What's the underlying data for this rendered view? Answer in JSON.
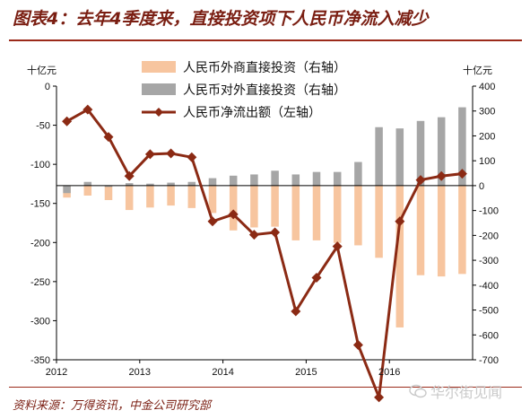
{
  "title": "图表4：去年4季度来，直接投资项下人民币净流入减少",
  "source": "资料来源：万得资讯，中金公司研究部",
  "watermark": "华尔街见闻",
  "colors": {
    "inward": "#f7c59f",
    "outward": "#a6a6a6",
    "net": "#8b2a14",
    "title": "#7a1e12"
  },
  "chart_data": {
    "type": "bar",
    "left_axis": {
      "unit": "十亿元",
      "min": -350,
      "max": 0,
      "ticks": [
        0,
        -50,
        -100,
        -150,
        -200,
        -250,
        -300,
        -350
      ]
    },
    "right_axis": {
      "unit": "十亿元",
      "min": -700,
      "max": 400,
      "ticks": [
        400,
        300,
        200,
        100,
        0,
        -100,
        -200,
        -300,
        -400,
        -500,
        -600,
        -700
      ]
    },
    "x_labels": [
      "2012",
      "2013",
      "2014",
      "2015",
      "2016"
    ],
    "periods": [
      "2012-01",
      "2012-04",
      "2012-07",
      "2012-10",
      "2013-01",
      "2013-04",
      "2013-07",
      "2013-10",
      "2014-01",
      "2014-04",
      "2014-07",
      "2014-10",
      "2015-01",
      "2015-04",
      "2015-07",
      "2015-10",
      "2016-01",
      "2016-04",
      "2016-07",
      "2016-10"
    ],
    "grid": false,
    "legend_position": "top",
    "series": [
      {
        "name": "人民币外商直接投资（右轴）",
        "kind": "bar",
        "axis": "right",
        "values": [
          -48,
          -40,
          -58,
          -98,
          -88,
          -80,
          -90,
          -110,
          -180,
          -168,
          -165,
          -220,
          -220,
          -230,
          -240,
          -290,
          -570,
          -360,
          -365,
          -355
        ]
      },
      {
        "name": "人民币对外直接投资（右轴）",
        "kind": "bar",
        "axis": "right",
        "values": [
          -30,
          15,
          -5,
          10,
          8,
          12,
          15,
          30,
          40,
          45,
          60,
          45,
          55,
          55,
          95,
          235,
          230,
          260,
          275,
          315
        ]
      },
      {
        "name": "人民币净流出额（左轴）",
        "kind": "line",
        "axis": "left",
        "values": [
          -45,
          -30,
          -65,
          -115,
          -87,
          -86,
          -91,
          -173,
          -164,
          -190,
          -187,
          -288,
          -245,
          -205,
          -331,
          -398,
          -173,
          -120,
          -115,
          -112
        ]
      }
    ]
  }
}
